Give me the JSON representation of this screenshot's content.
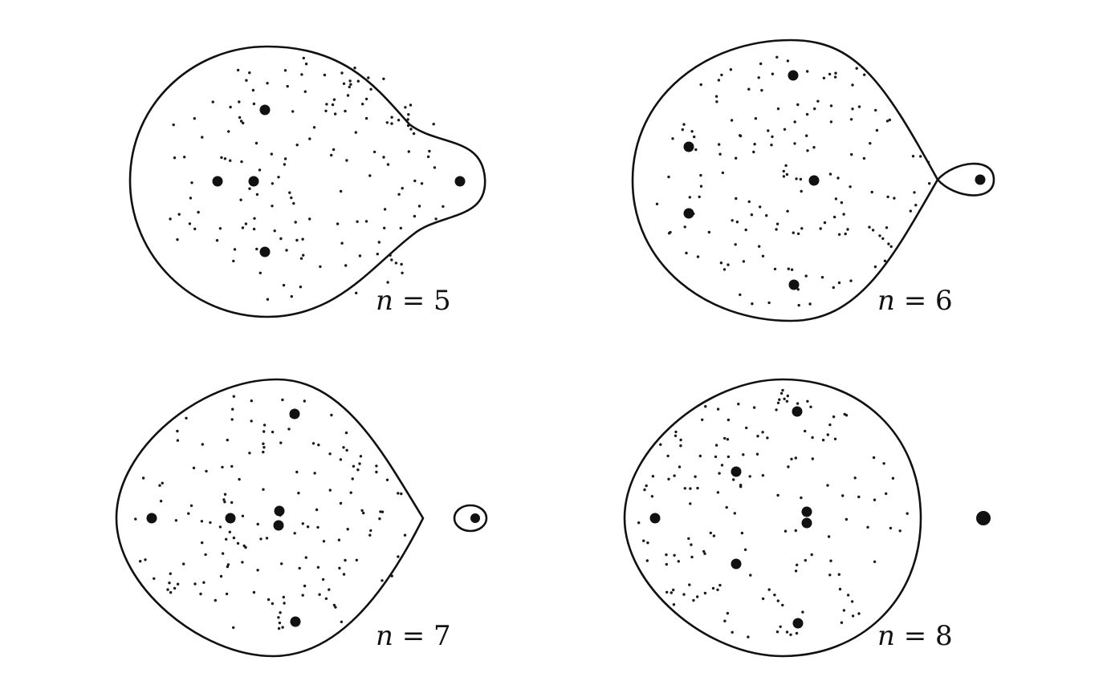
{
  "panels": [
    {
      "id": "n5",
      "label_var": "n",
      "label_rest": " = 5"
    },
    {
      "id": "n6",
      "label_var": "n",
      "label_rest": " = 6"
    },
    {
      "id": "n7",
      "label_var": "n",
      "label_rest": " = 7"
    },
    {
      "id": "n8",
      "label_var": "n",
      "label_rest": " = 8"
    }
  ]
}
